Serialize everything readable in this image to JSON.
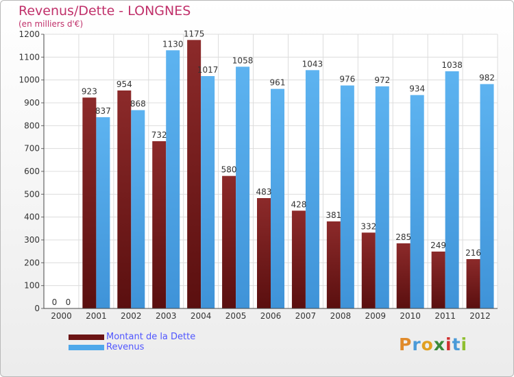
{
  "title": "Revenus/Dette - LONGNES",
  "subtitle": "(en milliers d'€)",
  "logo": "Proxiti",
  "chart_data": {
    "type": "bar",
    "title": "Revenus/Dette - LONGNES",
    "subtitle": "(en milliers d'€)",
    "categories": [
      "2000",
      "2001",
      "2002",
      "2003",
      "2004",
      "2005",
      "2006",
      "2007",
      "2008",
      "2009",
      "2010",
      "2011",
      "2012"
    ],
    "series": [
      {
        "name": "Montant de la Dette",
        "color": "#7b1c1c",
        "values": [
          0,
          923,
          954,
          732,
          1175,
          580,
          483,
          428,
          381,
          332,
          285,
          249,
          216
        ]
      },
      {
        "name": "Revenus",
        "color": "#4fa8ea",
        "values": [
          0,
          837,
          868,
          1130,
          1017,
          1058,
          961,
          1043,
          976,
          972,
          934,
          1038,
          982
        ]
      }
    ],
    "ylim": [
      0,
      1200
    ],
    "yticks": [
      0,
      100,
      200,
      300,
      400,
      500,
      600,
      700,
      800,
      900,
      1000,
      1100,
      1200
    ],
    "grid": true,
    "legend": "bottom-left"
  }
}
